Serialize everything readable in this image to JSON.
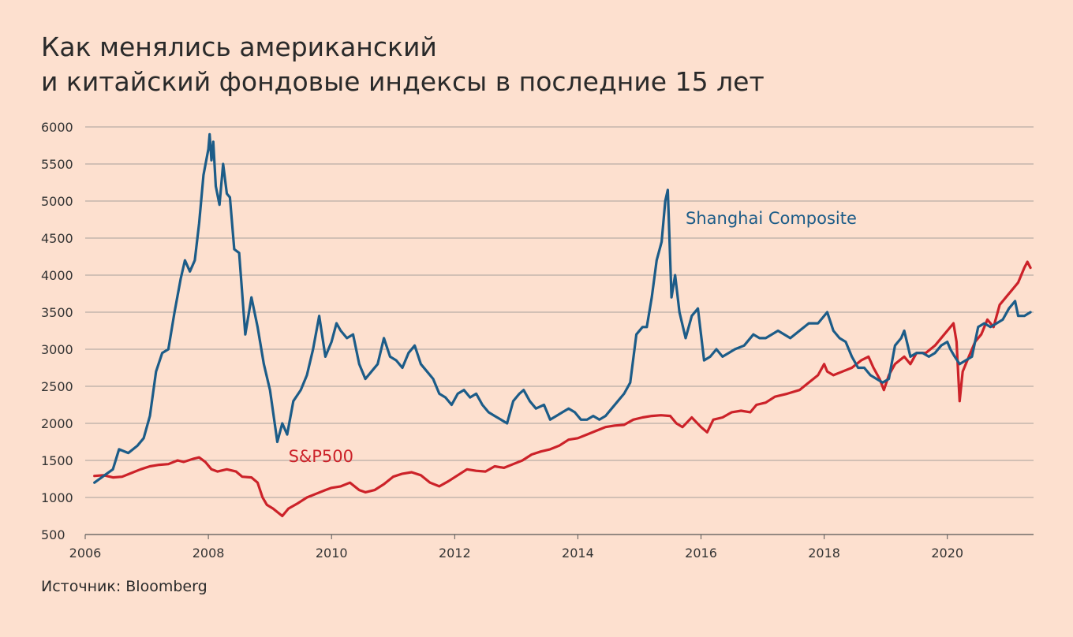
{
  "title": {
    "line1": "Как менялись американский",
    "line2": "и китайский фондовые индексы в последние 15 лет"
  },
  "source": "Источник: Bloomberg",
  "colors": {
    "background": "#fde0cf",
    "shanghai": "#1c5c88",
    "sp500": "#cc2229",
    "grid": "#8a8a8a"
  },
  "chart_data": {
    "type": "line",
    "title": "Как менялись американский и китайский фондовые индексы в последние 15 лет",
    "xlabel": "",
    "ylabel": "",
    "xlim": [
      2006,
      2021.4
    ],
    "ylim": [
      500,
      6000
    ],
    "yticks": [
      6000,
      5500,
      5000,
      4500,
      4000,
      3500,
      3000,
      2500,
      2000,
      1500,
      1000,
      500
    ],
    "xticks": [
      2006,
      2008,
      2010,
      2012,
      2014,
      2016,
      2018,
      2020
    ],
    "grid": true,
    "series": [
      {
        "name": "Shanghai Composite",
        "color": "#1c5c88",
        "label_at": [
          2015.75,
          4690
        ],
        "points": [
          [
            2006.15,
            1200
          ],
          [
            2006.3,
            1290
          ],
          [
            2006.45,
            1380
          ],
          [
            2006.55,
            1650
          ],
          [
            2006.7,
            1600
          ],
          [
            2006.85,
            1700
          ],
          [
            2006.95,
            1800
          ],
          [
            2007.05,
            2100
          ],
          [
            2007.15,
            2700
          ],
          [
            2007.25,
            2950
          ],
          [
            2007.35,
            3000
          ],
          [
            2007.45,
            3500
          ],
          [
            2007.55,
            3950
          ],
          [
            2007.62,
            4200
          ],
          [
            2007.7,
            4050
          ],
          [
            2007.78,
            4200
          ],
          [
            2007.85,
            4700
          ],
          [
            2007.92,
            5350
          ],
          [
            2008.0,
            5700
          ],
          [
            2008.02,
            5900
          ],
          [
            2008.05,
            5550
          ],
          [
            2008.08,
            5800
          ],
          [
            2008.12,
            5200
          ],
          [
            2008.18,
            4950
          ],
          [
            2008.24,
            5500
          ],
          [
            2008.3,
            5100
          ],
          [
            2008.35,
            5050
          ],
          [
            2008.42,
            4350
          ],
          [
            2008.5,
            4300
          ],
          [
            2008.6,
            3200
          ],
          [
            2008.7,
            3700
          ],
          [
            2008.8,
            3300
          ],
          [
            2008.9,
            2800
          ],
          [
            2009.0,
            2450
          ],
          [
            2009.12,
            1750
          ],
          [
            2009.2,
            2000
          ],
          [
            2009.28,
            1850
          ],
          [
            2009.38,
            2300
          ],
          [
            2009.5,
            2450
          ],
          [
            2009.6,
            2650
          ],
          [
            2009.7,
            3000
          ],
          [
            2009.8,
            3450
          ],
          [
            2009.9,
            2900
          ],
          [
            2010.0,
            3100
          ],
          [
            2010.08,
            3350
          ],
          [
            2010.15,
            3250
          ],
          [
            2010.25,
            3150
          ],
          [
            2010.35,
            3200
          ],
          [
            2010.45,
            2800
          ],
          [
            2010.55,
            2600
          ],
          [
            2010.65,
            2700
          ],
          [
            2010.75,
            2800
          ],
          [
            2010.85,
            3150
          ],
          [
            2010.95,
            2900
          ],
          [
            2011.05,
            2850
          ],
          [
            2011.15,
            2750
          ],
          [
            2011.25,
            2950
          ],
          [
            2011.35,
            3050
          ],
          [
            2011.45,
            2800
          ],
          [
            2011.55,
            2700
          ],
          [
            2011.65,
            2600
          ],
          [
            2011.75,
            2400
          ],
          [
            2011.85,
            2350
          ],
          [
            2011.95,
            2250
          ],
          [
            2012.05,
            2400
          ],
          [
            2012.15,
            2450
          ],
          [
            2012.25,
            2350
          ],
          [
            2012.35,
            2400
          ],
          [
            2012.45,
            2250
          ],
          [
            2012.55,
            2150
          ],
          [
            2012.65,
            2100
          ],
          [
            2012.75,
            2050
          ],
          [
            2012.85,
            2000
          ],
          [
            2012.95,
            2300
          ],
          [
            2013.05,
            2400
          ],
          [
            2013.12,
            2450
          ],
          [
            2013.22,
            2300
          ],
          [
            2013.32,
            2200
          ],
          [
            2013.45,
            2250
          ],
          [
            2013.55,
            2050
          ],
          [
            2013.65,
            2100
          ],
          [
            2013.75,
            2150
          ],
          [
            2013.85,
            2200
          ],
          [
            2013.95,
            2150
          ],
          [
            2014.05,
            2050
          ],
          [
            2014.15,
            2050
          ],
          [
            2014.25,
            2100
          ],
          [
            2014.35,
            2050
          ],
          [
            2014.45,
            2100
          ],
          [
            2014.55,
            2200
          ],
          [
            2014.65,
            2300
          ],
          [
            2014.75,
            2400
          ],
          [
            2014.85,
            2550
          ],
          [
            2014.95,
            3200
          ],
          [
            2015.05,
            3300
          ],
          [
            2015.12,
            3300
          ],
          [
            2015.2,
            3700
          ],
          [
            2015.28,
            4200
          ],
          [
            2015.36,
            4450
          ],
          [
            2015.42,
            5000
          ],
          [
            2015.46,
            5150
          ],
          [
            2015.52,
            3700
          ],
          [
            2015.58,
            4000
          ],
          [
            2015.65,
            3500
          ],
          [
            2015.75,
            3150
          ],
          [
            2015.85,
            3450
          ],
          [
            2015.95,
            3550
          ],
          [
            2016.05,
            2850
          ],
          [
            2016.15,
            2900
          ],
          [
            2016.25,
            3000
          ],
          [
            2016.35,
            2900
          ],
          [
            2016.45,
            2950
          ],
          [
            2016.55,
            3000
          ],
          [
            2016.7,
            3050
          ],
          [
            2016.85,
            3200
          ],
          [
            2016.95,
            3150
          ],
          [
            2017.05,
            3150
          ],
          [
            2017.25,
            3250
          ],
          [
            2017.45,
            3150
          ],
          [
            2017.6,
            3250
          ],
          [
            2017.75,
            3350
          ],
          [
            2017.9,
            3350
          ],
          [
            2018.05,
            3500
          ],
          [
            2018.15,
            3250
          ],
          [
            2018.25,
            3150
          ],
          [
            2018.35,
            3100
          ],
          [
            2018.45,
            2900
          ],
          [
            2018.55,
            2750
          ],
          [
            2018.65,
            2750
          ],
          [
            2018.75,
            2650
          ],
          [
            2018.85,
            2600
          ],
          [
            2018.95,
            2550
          ],
          [
            2019.05,
            2600
          ],
          [
            2019.15,
            3050
          ],
          [
            2019.25,
            3150
          ],
          [
            2019.3,
            3250
          ],
          [
            2019.4,
            2900
          ],
          [
            2019.5,
            2950
          ],
          [
            2019.6,
            2950
          ],
          [
            2019.7,
            2900
          ],
          [
            2019.8,
            2950
          ],
          [
            2019.9,
            3050
          ],
          [
            2020.0,
            3100
          ],
          [
            2020.05,
            3000
          ],
          [
            2020.12,
            2900
          ],
          [
            2020.2,
            2800
          ],
          [
            2020.3,
            2850
          ],
          [
            2020.4,
            2900
          ],
          [
            2020.5,
            3300
          ],
          [
            2020.6,
            3350
          ],
          [
            2020.7,
            3300
          ],
          [
            2020.8,
            3350
          ],
          [
            2020.9,
            3400
          ],
          [
            2021.0,
            3550
          ],
          [
            2021.1,
            3650
          ],
          [
            2021.15,
            3450
          ],
          [
            2021.25,
            3450
          ],
          [
            2021.35,
            3500
          ]
        ]
      },
      {
        "name": "S&P500",
        "color": "#cc2229",
        "label_at": [
          2009.3,
          1480
        ],
        "points": [
          [
            2006.15,
            1290
          ],
          [
            2006.3,
            1300
          ],
          [
            2006.45,
            1270
          ],
          [
            2006.6,
            1280
          ],
          [
            2006.75,
            1330
          ],
          [
            2006.9,
            1380
          ],
          [
            2007.05,
            1420
          ],
          [
            2007.2,
            1440
          ],
          [
            2007.35,
            1450
          ],
          [
            2007.5,
            1500
          ],
          [
            2007.6,
            1480
          ],
          [
            2007.75,
            1520
          ],
          [
            2007.85,
            1540
          ],
          [
            2007.95,
            1480
          ],
          [
            2008.05,
            1380
          ],
          [
            2008.15,
            1350
          ],
          [
            2008.3,
            1380
          ],
          [
            2008.45,
            1350
          ],
          [
            2008.55,
            1280
          ],
          [
            2008.7,
            1270
          ],
          [
            2008.8,
            1200
          ],
          [
            2008.88,
            1000
          ],
          [
            2008.95,
            900
          ],
          [
            2009.05,
            850
          ],
          [
            2009.2,
            750
          ],
          [
            2009.3,
            850
          ],
          [
            2009.45,
            920
          ],
          [
            2009.6,
            1000
          ],
          [
            2009.75,
            1050
          ],
          [
            2009.9,
            1100
          ],
          [
            2010.0,
            1130
          ],
          [
            2010.15,
            1150
          ],
          [
            2010.3,
            1200
          ],
          [
            2010.45,
            1100
          ],
          [
            2010.55,
            1070
          ],
          [
            2010.7,
            1100
          ],
          [
            2010.85,
            1180
          ],
          [
            2011.0,
            1280
          ],
          [
            2011.15,
            1320
          ],
          [
            2011.3,
            1340
          ],
          [
            2011.45,
            1300
          ],
          [
            2011.6,
            1200
          ],
          [
            2011.75,
            1150
          ],
          [
            2011.9,
            1220
          ],
          [
            2012.05,
            1300
          ],
          [
            2012.2,
            1380
          ],
          [
            2012.35,
            1360
          ],
          [
            2012.5,
            1350
          ],
          [
            2012.65,
            1420
          ],
          [
            2012.8,
            1400
          ],
          [
            2012.95,
            1450
          ],
          [
            2013.1,
            1500
          ],
          [
            2013.25,
            1580
          ],
          [
            2013.4,
            1620
          ],
          [
            2013.55,
            1650
          ],
          [
            2013.7,
            1700
          ],
          [
            2013.85,
            1780
          ],
          [
            2014.0,
            1800
          ],
          [
            2014.15,
            1850
          ],
          [
            2014.3,
            1900
          ],
          [
            2014.45,
            1950
          ],
          [
            2014.6,
            1970
          ],
          [
            2014.75,
            1980
          ],
          [
            2014.9,
            2050
          ],
          [
            2015.05,
            2080
          ],
          [
            2015.2,
            2100
          ],
          [
            2015.35,
            2110
          ],
          [
            2015.5,
            2100
          ],
          [
            2015.6,
            2000
          ],
          [
            2015.7,
            1950
          ],
          [
            2015.85,
            2080
          ],
          [
            2016.0,
            1950
          ],
          [
            2016.1,
            1880
          ],
          [
            2016.2,
            2050
          ],
          [
            2016.35,
            2080
          ],
          [
            2016.5,
            2150
          ],
          [
            2016.65,
            2170
          ],
          [
            2016.8,
            2150
          ],
          [
            2016.9,
            2250
          ],
          [
            2017.05,
            2280
          ],
          [
            2017.2,
            2360
          ],
          [
            2017.4,
            2400
          ],
          [
            2017.6,
            2450
          ],
          [
            2017.75,
            2550
          ],
          [
            2017.9,
            2650
          ],
          [
            2018.0,
            2800
          ],
          [
            2018.05,
            2700
          ],
          [
            2018.15,
            2650
          ],
          [
            2018.3,
            2700
          ],
          [
            2018.45,
            2750
          ],
          [
            2018.6,
            2850
          ],
          [
            2018.72,
            2900
          ],
          [
            2018.8,
            2750
          ],
          [
            2018.9,
            2600
          ],
          [
            2018.97,
            2450
          ],
          [
            2019.05,
            2650
          ],
          [
            2019.15,
            2800
          ],
          [
            2019.3,
            2900
          ],
          [
            2019.4,
            2800
          ],
          [
            2019.5,
            2950
          ],
          [
            2019.65,
            2950
          ],
          [
            2019.8,
            3050
          ],
          [
            2019.95,
            3200
          ],
          [
            2020.1,
            3350
          ],
          [
            2020.15,
            3100
          ],
          [
            2020.2,
            2300
          ],
          [
            2020.25,
            2700
          ],
          [
            2020.35,
            2900
          ],
          [
            2020.45,
            3100
          ],
          [
            2020.55,
            3200
          ],
          [
            2020.65,
            3400
          ],
          [
            2020.75,
            3300
          ],
          [
            2020.85,
            3600
          ],
          [
            2020.95,
            3700
          ],
          [
            2021.05,
            3800
          ],
          [
            2021.15,
            3900
          ],
          [
            2021.25,
            4100
          ],
          [
            2021.3,
            4180
          ],
          [
            2021.35,
            4100
          ]
        ]
      }
    ]
  }
}
